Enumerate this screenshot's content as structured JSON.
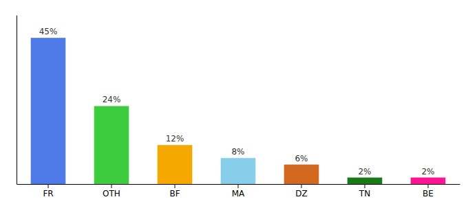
{
  "chart_data": {
    "type": "bar",
    "categories": [
      "FR",
      "OTH",
      "BF",
      "MA",
      "DZ",
      "TN",
      "BE"
    ],
    "values": [
      45,
      24,
      12,
      8,
      6,
      2,
      2
    ],
    "value_labels": [
      "45%",
      "24%",
      "12%",
      "8%",
      "6%",
      "2%",
      "2%"
    ],
    "colors": [
      "#4f7be8",
      "#3dcc3d",
      "#f5a800",
      "#87ceeb",
      "#d2691e",
      "#1a7a1a",
      "#ff1493"
    ],
    "ylim": [
      0,
      52
    ],
    "data_labels": true,
    "tick_labels": "x",
    "grid": false
  }
}
